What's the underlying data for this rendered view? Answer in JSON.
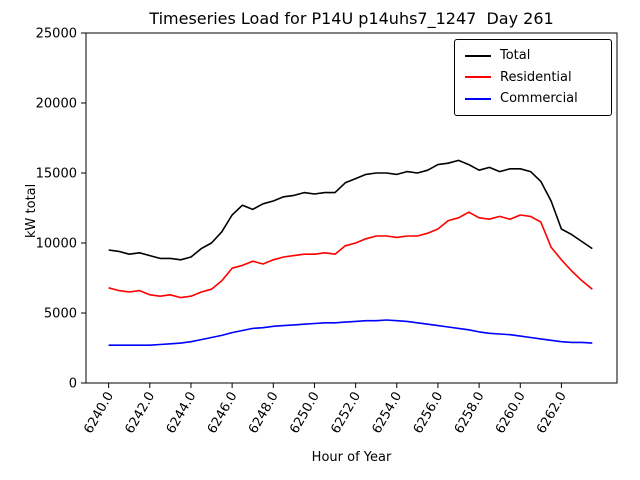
{
  "figure": {
    "background": "#ffffff",
    "frame_color": "#000000"
  },
  "chart_data": {
    "type": "line",
    "title": "Timeseries Load for P14U p14uhs7_1247  Day 261",
    "xlabel": "Hour of Year",
    "ylabel": "kW total",
    "xlim": [
      6238.9,
      6264.7
    ],
    "ylim": [
      0,
      25000
    ],
    "grid": false,
    "legend_position": "upper right",
    "xticks": [
      6240,
      6242,
      6244,
      6246,
      6248,
      6250,
      6252,
      6254,
      6256,
      6258,
      6260,
      6262
    ],
    "xtick_labels": [
      "6240.0",
      "6242.0",
      "6244.0",
      "6246.0",
      "6248.0",
      "6250.0",
      "6252.0",
      "6254.0",
      "6256.0",
      "6258.0",
      "6260.0",
      "6262.0"
    ],
    "yticks": [
      0,
      5000,
      10000,
      15000,
      20000,
      25000
    ],
    "ytick_labels": [
      "0",
      "5000",
      "10000",
      "15000",
      "20000",
      "25000"
    ],
    "x": [
      6240.0,
      6240.5,
      6241.0,
      6241.5,
      6242.0,
      6242.5,
      6243.0,
      6243.5,
      6244.0,
      6244.5,
      6245.0,
      6245.5,
      6246.0,
      6246.5,
      6247.0,
      6247.5,
      6248.0,
      6248.5,
      6249.0,
      6249.5,
      6250.0,
      6250.5,
      6251.0,
      6251.5,
      6252.0,
      6252.5,
      6253.0,
      6253.5,
      6254.0,
      6254.5,
      6255.0,
      6255.5,
      6256.0,
      6256.5,
      6257.0,
      6257.5,
      6258.0,
      6258.5,
      6259.0,
      6259.5,
      6260.0,
      6260.5,
      6261.0,
      6261.5,
      6262.0,
      6262.5,
      6263.0,
      6263.5
    ],
    "series": [
      {
        "name": "Total",
        "color": "#000000",
        "values": [
          9500,
          9400,
          9200,
          9300,
          9100,
          8900,
          8900,
          8800,
          9000,
          9600,
          10000,
          10800,
          12000,
          12700,
          12400,
          12800,
          13000,
          13300,
          13400,
          13600,
          13500,
          13600,
          13600,
          14300,
          14600,
          14900,
          15000,
          15000,
          14900,
          15100,
          15000,
          15200,
          15600,
          15700,
          15900,
          15600,
          15200,
          15400,
          15100,
          15300,
          15300,
          15100,
          14400,
          13000,
          11000,
          10600,
          10100,
          9600
        ]
      },
      {
        "name": "Residential",
        "color": "#ff0000",
        "values": [
          6800,
          6600,
          6500,
          6600,
          6300,
          6200,
          6300,
          6100,
          6200,
          6500,
          6700,
          7300,
          8200,
          8400,
          8700,
          8500,
          8800,
          9000,
          9100,
          9200,
          9200,
          9300,
          9200,
          9800,
          10000,
          10300,
          10500,
          10500,
          10400,
          10500,
          10500,
          10700,
          11000,
          11600,
          11800,
          12200,
          11800,
          11700,
          11900,
          11700,
          12000,
          11900,
          11500,
          9700,
          8800,
          8000,
          7300,
          6700
        ]
      },
      {
        "name": "Commercial",
        "color": "#0000ff",
        "values": [
          2700,
          2700,
          2700,
          2700,
          2700,
          2750,
          2800,
          2850,
          2950,
          3100,
          3250,
          3400,
          3600,
          3750,
          3900,
          3950,
          4050,
          4100,
          4150,
          4200,
          4250,
          4300,
          4300,
          4350,
          4400,
          4450,
          4450,
          4500,
          4450,
          4400,
          4300,
          4200,
          4100,
          4000,
          3900,
          3800,
          3650,
          3550,
          3500,
          3450,
          3350,
          3250,
          3150,
          3050,
          2950,
          2900,
          2900,
          2850
        ]
      }
    ]
  }
}
